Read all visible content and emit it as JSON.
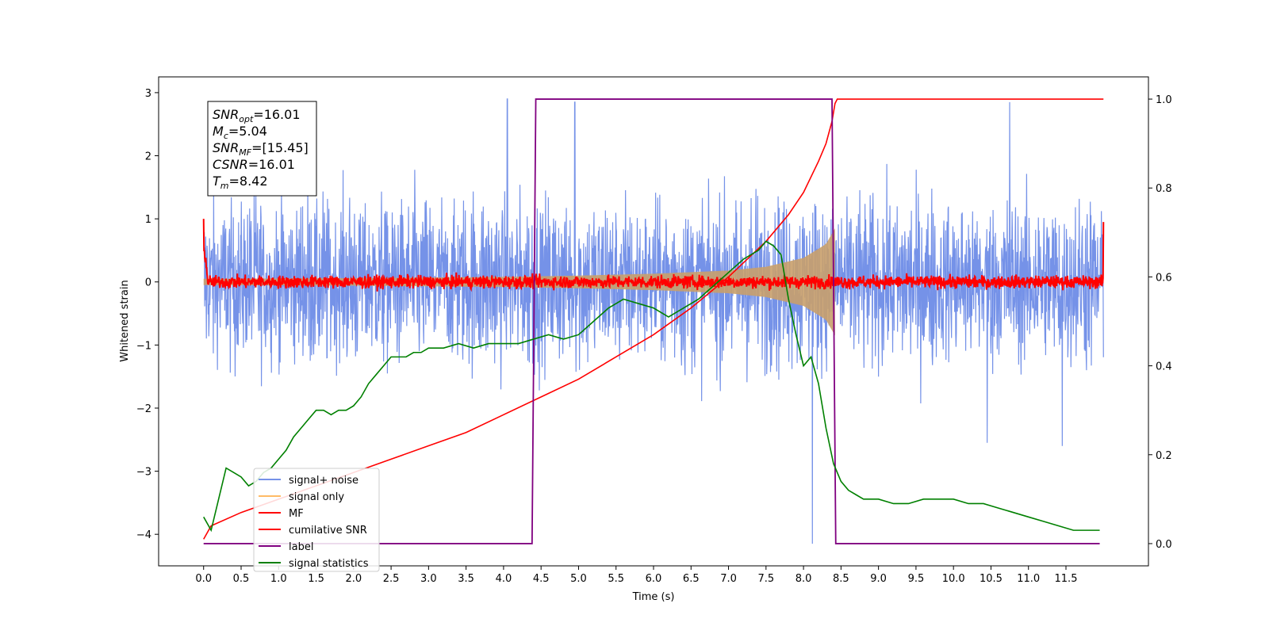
{
  "chart_data": {
    "type": "line",
    "xlabel": "Time (s)",
    "ylabel": "Whitened strain",
    "y2label": "",
    "xlim": [
      -0.6,
      12.6
    ],
    "ylim": [
      -4.5,
      3.25
    ],
    "y2lim": [
      -0.05,
      1.05
    ],
    "xticks": [
      0.0,
      0.5,
      1.0,
      1.5,
      2.0,
      2.5,
      3.0,
      3.5,
      4.0,
      4.5,
      5.0,
      5.5,
      6.0,
      6.5,
      7.0,
      7.5,
      8.0,
      8.5,
      9.0,
      9.5,
      10.0,
      10.5,
      11.0,
      11.5
    ],
    "xtick_labels": [
      "0.0",
      "0.5",
      "1.0",
      "1.5",
      "2.0",
      "2.5",
      "3.0",
      "3.5",
      "4.0",
      "4.5",
      "5.0",
      "5.5",
      "6.0",
      "6.5",
      "7.0",
      "7.5",
      "8.0",
      "8.5",
      "9.0",
      "9.5",
      "10.0",
      "10.5",
      "11.0",
      "11.5"
    ],
    "yticks": [
      3,
      2,
      1,
      0,
      -1,
      -2,
      -3,
      -4
    ],
    "ytick_labels": [
      "3",
      "2",
      "1",
      "0",
      "−1",
      "−2",
      "−3",
      "−4"
    ],
    "y2ticks": [
      1.0,
      0.8,
      0.6,
      0.4,
      0.2,
      0.0
    ],
    "y2tick_labels": [
      "1.0",
      "0.8",
      "0.6",
      "0.4",
      "0.2",
      "0.0"
    ],
    "grid": false,
    "legend_placement": "lower-left",
    "series": [
      {
        "name": "signal+ noise",
        "axis": "left",
        "color": "#7592e8",
        "kind": "noise",
        "x_range": [
          0.0,
          12.0
        ],
        "amplitude_band": [
          -1.5,
          2.0
        ],
        "extreme_values": [
          {
            "x": 4.05,
            "y": 2.9
          },
          {
            "x": 4.95,
            "y": 2.85
          },
          {
            "x": 10.75,
            "y": 2.85
          },
          {
            "x": 8.12,
            "y": -4.15
          },
          {
            "x": 11.45,
            "y": -2.6
          },
          {
            "x": 10.45,
            "y": -2.55
          }
        ]
      },
      {
        "name": "signal only",
        "axis": "left",
        "color": "#ffbb66",
        "kind": "chirp",
        "t_merger": 8.42,
        "envelope": [
          [
            0.0,
            0.05
          ],
          [
            2.0,
            0.06
          ],
          [
            4.0,
            0.08
          ],
          [
            5.0,
            0.1
          ],
          [
            6.0,
            0.13
          ],
          [
            7.0,
            0.18
          ],
          [
            7.5,
            0.24
          ],
          [
            8.0,
            0.38
          ],
          [
            8.3,
            0.6
          ],
          [
            8.42,
            0.85
          ]
        ]
      },
      {
        "name": "MF",
        "axis": "left",
        "color": "#ff0000",
        "kind": "noise",
        "x_range": [
          0.0,
          12.0
        ],
        "amplitude_band": [
          -0.1,
          0.1
        ],
        "edge_values": [
          {
            "x": 0.0,
            "y": 1.0
          },
          {
            "x": 12.0,
            "y": 0.95
          }
        ]
      },
      {
        "name": "cumilative SNR",
        "axis": "right",
        "color": "#ff0000",
        "x": [
          0.0,
          0.1,
          0.5,
          1.0,
          1.5,
          2.0,
          2.5,
          3.0,
          3.5,
          4.0,
          4.5,
          5.0,
          5.5,
          6.0,
          6.5,
          7.0,
          7.5,
          7.8,
          8.0,
          8.2,
          8.3,
          8.38,
          8.42,
          8.45,
          12.0
        ],
        "y": [
          0.01,
          0.04,
          0.07,
          0.1,
          0.13,
          0.16,
          0.19,
          0.22,
          0.25,
          0.29,
          0.33,
          0.37,
          0.42,
          0.47,
          0.53,
          0.6,
          0.68,
          0.74,
          0.79,
          0.86,
          0.9,
          0.95,
          0.99,
          1.0,
          1.0
        ]
      },
      {
        "name": "label",
        "axis": "right",
        "color": "#800080",
        "x": [
          0.0,
          4.38,
          4.43,
          8.38,
          8.43,
          11.95
        ],
        "y": [
          0.0,
          0.0,
          1.0,
          1.0,
          0.0,
          0.0
        ]
      },
      {
        "name": "signal statistics",
        "axis": "right",
        "color": "#008000",
        "x": [
          0.0,
          0.1,
          0.2,
          0.3,
          0.4,
          0.5,
          0.6,
          0.7,
          0.8,
          0.9,
          1.0,
          1.1,
          1.2,
          1.3,
          1.4,
          1.5,
          1.6,
          1.7,
          1.8,
          1.9,
          2.0,
          2.1,
          2.2,
          2.3,
          2.4,
          2.5,
          2.6,
          2.7,
          2.8,
          2.9,
          3.0,
          3.2,
          3.4,
          3.6,
          3.8,
          4.0,
          4.2,
          4.4,
          4.6,
          4.8,
          5.0,
          5.2,
          5.4,
          5.6,
          5.8,
          6.0,
          6.2,
          6.4,
          6.6,
          6.8,
          7.0,
          7.2,
          7.4,
          7.5,
          7.6,
          7.7,
          7.8,
          7.9,
          8.0,
          8.1,
          8.2,
          8.3,
          8.4,
          8.5,
          8.6,
          8.7,
          8.8,
          9.0,
          9.2,
          9.4,
          9.6,
          9.8,
          10.0,
          10.2,
          10.4,
          10.6,
          10.8,
          11.0,
          11.2,
          11.4,
          11.6,
          11.8,
          11.95
        ],
        "y": [
          0.06,
          0.03,
          0.1,
          0.17,
          0.16,
          0.15,
          0.13,
          0.14,
          0.16,
          0.17,
          0.19,
          0.21,
          0.24,
          0.26,
          0.28,
          0.3,
          0.3,
          0.29,
          0.3,
          0.3,
          0.31,
          0.33,
          0.36,
          0.38,
          0.4,
          0.42,
          0.42,
          0.42,
          0.43,
          0.43,
          0.44,
          0.44,
          0.45,
          0.44,
          0.45,
          0.45,
          0.45,
          0.46,
          0.47,
          0.46,
          0.47,
          0.5,
          0.53,
          0.55,
          0.54,
          0.53,
          0.51,
          0.53,
          0.55,
          0.58,
          0.61,
          0.64,
          0.66,
          0.68,
          0.67,
          0.65,
          0.55,
          0.47,
          0.4,
          0.42,
          0.36,
          0.26,
          0.18,
          0.14,
          0.12,
          0.11,
          0.1,
          0.1,
          0.09,
          0.09,
          0.1,
          0.1,
          0.1,
          0.09,
          0.09,
          0.08,
          0.07,
          0.06,
          0.05,
          0.04,
          0.03,
          0.03,
          0.03
        ]
      }
    ],
    "info_box": {
      "lines": [
        {
          "main": "SNR",
          "sub": "opt",
          "value": "=16.01"
        },
        {
          "main": "M",
          "sub": "c",
          "value": "=5.04"
        },
        {
          "main": "SNR",
          "sub": "MF",
          "value": "=[15.45]"
        },
        {
          "main": "CSNR",
          "sub": "",
          "value": "=16.01"
        },
        {
          "main": "T",
          "sub": "m",
          "value": "=8.42"
        }
      ]
    }
  }
}
